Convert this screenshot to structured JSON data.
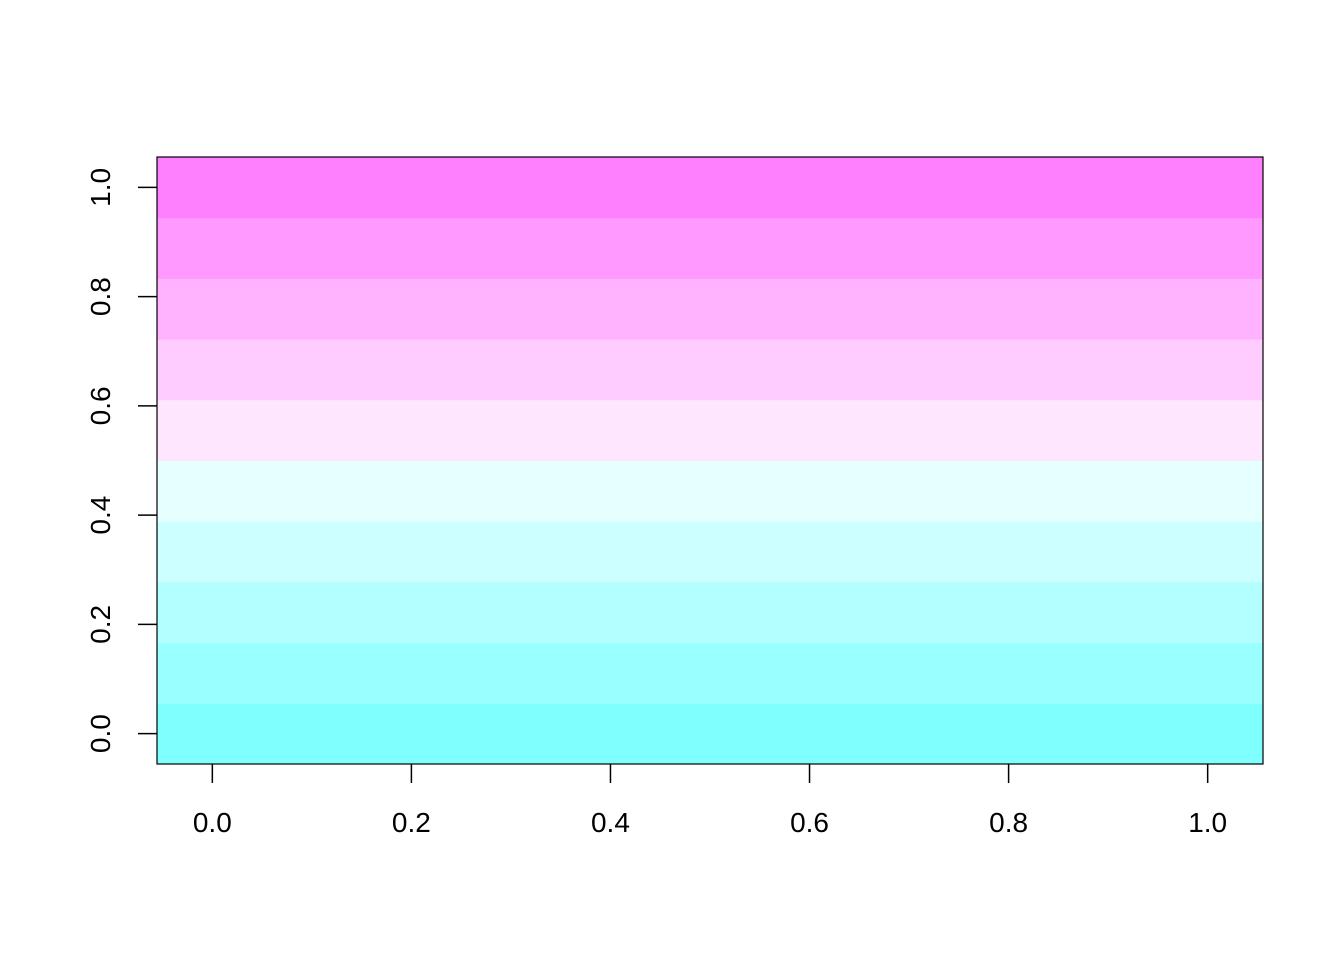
{
  "chart_data": {
    "type": "heatmap",
    "y": [
      0,
      0.1111,
      0.2222,
      0.3333,
      0.4444,
      0.5556,
      0.6667,
      0.7778,
      0.8889,
      1
    ],
    "colors": [
      "#80FFFF",
      "#99FFFF",
      "#B3FFFF",
      "#CCFFFF",
      "#E6FFFF",
      "#FFE6FF",
      "#FFCCFF",
      "#FFB3FF",
      "#FF99FF",
      "#FF80FF"
    ],
    "xlim": [
      -0.0556,
      1.0556
    ],
    "ylim": [
      -0.0556,
      1.0556
    ],
    "xticks": [
      {
        "value": 0,
        "label": "0.0"
      },
      0.2,
      0.4,
      0.6,
      0.8,
      {
        "value": 1,
        "label": "1.0"
      }
    ],
    "yticks": [
      {
        "value": 0,
        "label": "0.0"
      },
      0.2,
      0.4,
      0.6,
      0.8,
      {
        "value": 1,
        "label": "1.0"
      }
    ]
  }
}
